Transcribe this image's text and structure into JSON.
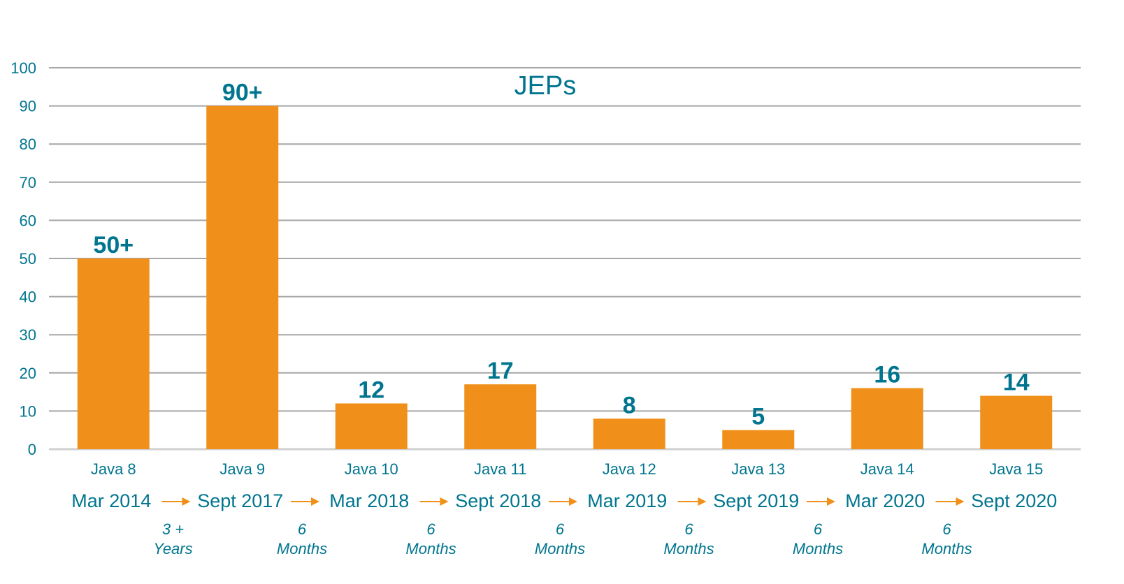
{
  "chart_data": {
    "type": "bar",
    "title": "JEPs",
    "xlabel": "",
    "ylabel": "",
    "ylim": [
      0,
      100
    ],
    "yticks": [
      0,
      10,
      20,
      30,
      40,
      50,
      60,
      70,
      80,
      90,
      100
    ],
    "grid": true,
    "categories": [
      "Java 8",
      "Java 9",
      "Java 10",
      "Java 11",
      "Java 12",
      "Java 13",
      "Java 14",
      "Java 15"
    ],
    "values": [
      50,
      90,
      12,
      17,
      8,
      5,
      16,
      14
    ],
    "data_labels": [
      "50+",
      "90+",
      "12",
      "17",
      "8",
      "5",
      "16",
      "14"
    ],
    "release_dates": [
      "Mar 2014",
      "Sept 2017",
      "Mar 2018",
      "Sept 2018",
      "Mar 2019",
      "Sept 2019",
      "Mar 2020",
      "Sept 2020"
    ],
    "intervals": [
      [
        "3 +",
        "Years"
      ],
      [
        "6",
        "Months"
      ],
      [
        "6",
        "Months"
      ],
      [
        "6",
        "Months"
      ],
      [
        "6",
        "Months"
      ],
      [
        "6",
        "Months"
      ],
      [
        "6",
        "Months"
      ]
    ],
    "colors": {
      "bar": "#f0901a",
      "text": "#00758f",
      "grid": "#a6a6a6",
      "arrow": "#f0901a"
    }
  }
}
